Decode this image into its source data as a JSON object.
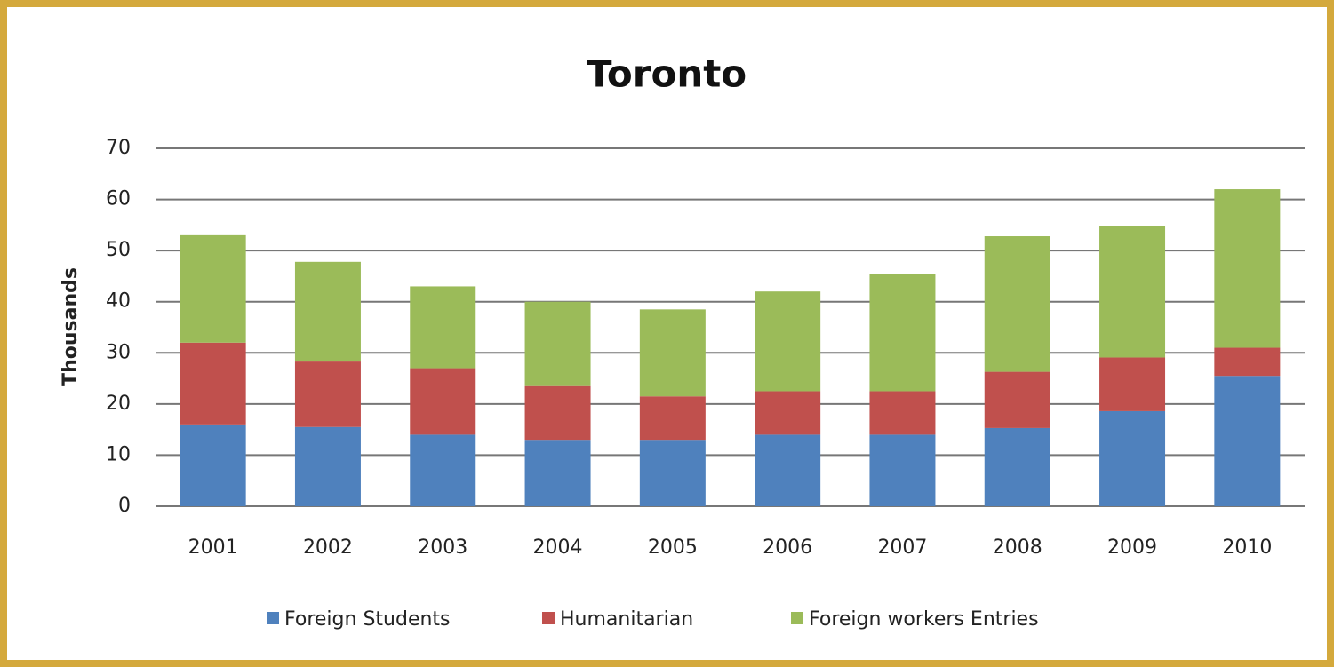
{
  "chart_data": {
    "type": "stacked_bar",
    "title": "Toronto",
    "y_label": "Thousands",
    "categories": [
      "2001",
      "2002",
      "2003",
      "2004",
      "2005",
      "2006",
      "2007",
      "2008",
      "2009",
      "2010"
    ],
    "series": [
      {
        "name": "Foreign Students",
        "color": "#4f81bd",
        "values": [
          16,
          15.5,
          14,
          13,
          13,
          14,
          14,
          15.3,
          18.6,
          25.5
        ]
      },
      {
        "name": "Humanitarian",
        "color": "#c0504d",
        "values": [
          16,
          12.8,
          13,
          10.5,
          8.5,
          8.5,
          8.5,
          11,
          10.5,
          5.5
        ]
      },
      {
        "name": "Foreign workers Entries",
        "color": "#9bbb59",
        "values": [
          21,
          19.5,
          16,
          16.5,
          17,
          19.5,
          23,
          26.5,
          25.7,
          31
        ]
      }
    ],
    "ylim": [
      0,
      70
    ],
    "yticks": [
      0,
      10,
      20,
      30,
      40,
      50,
      60,
      70
    ],
    "grid": true,
    "legend": "bottom"
  }
}
